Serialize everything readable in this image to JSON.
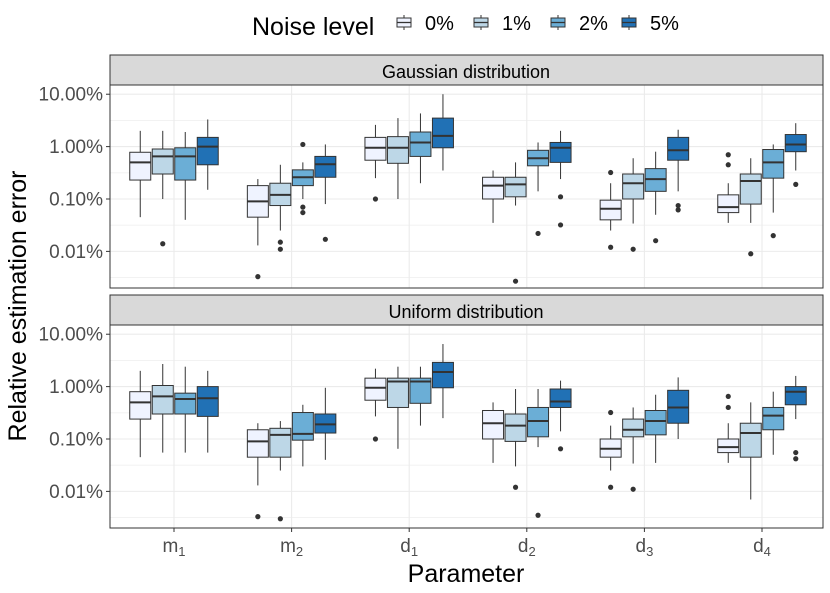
{
  "chart_data": {
    "type": "boxplot",
    "xlabel": "Parameter",
    "ylabel": "Relative estimation error",
    "legend": {
      "title": "Noise level",
      "position": "top",
      "entries": [
        {
          "label": "0%",
          "color": "#eff3ff"
        },
        {
          "label": "1%",
          "color": "#bdd7e7"
        },
        {
          "label": "2%",
          "color": "#6baed6"
        },
        {
          "label": "5%",
          "color": "#2171b5"
        }
      ]
    },
    "yscale": "log10",
    "ylim": [
      0.002,
      15
    ],
    "yticks": [
      {
        "value": 0.01,
        "label": "0.01%"
      },
      {
        "value": 0.1,
        "label": "0.10%"
      },
      {
        "value": 1,
        "label": "1.00%"
      },
      {
        "value": 10,
        "label": "10.00%"
      }
    ],
    "categories": [
      {
        "main": "m",
        "sub": "1"
      },
      {
        "main": "m",
        "sub": "2"
      },
      {
        "main": "d",
        "sub": "1"
      },
      {
        "main": "d",
        "sub": "2"
      },
      {
        "main": "d",
        "sub": "3"
      },
      {
        "main": "d",
        "sub": "4"
      }
    ],
    "panels": [
      {
        "title": "Gaussian distribution",
        "groups": [
          [
            {
              "lw": 0.045,
              "q1": 0.23,
              "med": 0.5,
              "q3": 0.78,
              "hw": 2.0,
              "out": []
            },
            {
              "lw": 0.1,
              "q1": 0.3,
              "med": 0.65,
              "q3": 0.9,
              "hw": 2.0,
              "out": [
                0.014
              ]
            },
            {
              "lw": 0.04,
              "q1": 0.23,
              "med": 0.65,
              "q3": 0.95,
              "hw": 1.9,
              "out": []
            },
            {
              "lw": 0.15,
              "q1": 0.45,
              "med": 1.0,
              "q3": 1.5,
              "hw": 3.3,
              "out": []
            }
          ],
          [
            {
              "lw": 0.013,
              "q1": 0.045,
              "med": 0.09,
              "q3": 0.18,
              "hw": 0.24,
              "out": [
                0.0033
              ]
            },
            {
              "lw": 0.025,
              "q1": 0.075,
              "med": 0.12,
              "q3": 0.2,
              "hw": 0.45,
              "out": [
                0.015,
                0.011
              ]
            },
            {
              "lw": 0.1,
              "q1": 0.18,
              "med": 0.26,
              "q3": 0.36,
              "hw": 0.5,
              "out": [
                1.1,
                0.07,
                0.055
              ]
            },
            {
              "lw": 0.08,
              "q1": 0.26,
              "med": 0.46,
              "q3": 0.65,
              "hw": 1.1,
              "out": [
                0.017
              ]
            }
          ],
          [
            {
              "lw": 0.25,
              "q1": 0.55,
              "med": 0.95,
              "q3": 1.5,
              "hw": 2.6,
              "out": [
                0.1
              ]
            },
            {
              "lw": 0.1,
              "q1": 0.48,
              "med": 0.95,
              "q3": 1.55,
              "hw": 3.5,
              "out": []
            },
            {
              "lw": 0.2,
              "q1": 0.65,
              "med": 1.2,
              "q3": 1.9,
              "hw": 4.3,
              "out": []
            },
            {
              "lw": 0.35,
              "q1": 0.95,
              "med": 1.6,
              "q3": 3.5,
              "hw": 10,
              "out": []
            }
          ],
          [
            {
              "lw": 0.035,
              "q1": 0.1,
              "med": 0.18,
              "q3": 0.26,
              "hw": 0.35,
              "out": []
            },
            {
              "lw": 0.075,
              "q1": 0.11,
              "med": 0.19,
              "q3": 0.26,
              "hw": 0.5,
              "out": [
                0.0027
              ]
            },
            {
              "lw": 0.14,
              "q1": 0.43,
              "med": 0.6,
              "q3": 0.85,
              "hw": 1.2,
              "out": [
                0.022
              ]
            },
            {
              "lw": 0.24,
              "q1": 0.5,
              "med": 0.95,
              "q3": 1.2,
              "hw": 2.0,
              "out": [
                0.11,
                0.032
              ]
            }
          ],
          [
            {
              "lw": 0.025,
              "q1": 0.04,
              "med": 0.065,
              "q3": 0.095,
              "hw": 0.2,
              "out": [
                0.32,
                0.012
              ]
            },
            {
              "lw": 0.034,
              "q1": 0.1,
              "med": 0.2,
              "q3": 0.3,
              "hw": 0.6,
              "out": [
                0.011
              ]
            },
            {
              "lw": 0.05,
              "q1": 0.14,
              "med": 0.24,
              "q3": 0.38,
              "hw": 0.8,
              "out": [
                0.016
              ]
            },
            {
              "lw": 0.14,
              "q1": 0.55,
              "med": 0.85,
              "q3": 1.5,
              "hw": 2.1,
              "out": [
                0.075,
                0.062
              ]
            }
          ],
          [
            {
              "lw": 0.035,
              "q1": 0.055,
              "med": 0.07,
              "q3": 0.12,
              "hw": 0.2,
              "out": [
                0.7,
                0.45
              ]
            },
            {
              "lw": 0.035,
              "q1": 0.08,
              "med": 0.22,
              "q3": 0.3,
              "hw": 0.6,
              "out": [
                0.009
              ]
            },
            {
              "lw": 0.055,
              "q1": 0.25,
              "med": 0.5,
              "q3": 0.88,
              "hw": 1.1,
              "out": [
                0.02
              ]
            },
            {
              "lw": 0.35,
              "q1": 0.8,
              "med": 1.1,
              "q3": 1.7,
              "hw": 2.8,
              "out": [
                0.19
              ]
            }
          ]
        ]
      },
      {
        "title": "Uniform distribution",
        "groups": [
          [
            {
              "lw": 0.045,
              "q1": 0.24,
              "med": 0.5,
              "q3": 0.8,
              "hw": 2.0,
              "out": []
            },
            {
              "lw": 0.055,
              "q1": 0.3,
              "med": 0.65,
              "q3": 1.05,
              "hw": 2.7,
              "out": []
            },
            {
              "lw": 0.055,
              "q1": 0.3,
              "med": 0.58,
              "q3": 0.75,
              "hw": 2.4,
              "out": []
            },
            {
              "lw": 0.055,
              "q1": 0.27,
              "med": 0.6,
              "q3": 1.0,
              "hw": 2.0,
              "out": []
            }
          ],
          [
            {
              "lw": 0.013,
              "q1": 0.045,
              "med": 0.09,
              "q3": 0.15,
              "hw": 0.2,
              "out": [
                0.0033
              ]
            },
            {
              "lw": 0.025,
              "q1": 0.045,
              "med": 0.12,
              "q3": 0.16,
              "hw": 0.22,
              "out": [
                0.003
              ]
            },
            {
              "lw": 0.03,
              "q1": 0.095,
              "med": 0.125,
              "q3": 0.32,
              "hw": 0.45,
              "out": []
            },
            {
              "lw": 0.04,
              "q1": 0.13,
              "med": 0.19,
              "q3": 0.3,
              "hw": 0.95,
              "out": []
            }
          ],
          [
            {
              "lw": 0.27,
              "q1": 0.55,
              "med": 0.95,
              "q3": 1.45,
              "hw": 2.2,
              "out": [
                0.1
              ]
            },
            {
              "lw": 0.065,
              "q1": 0.4,
              "med": 1.25,
              "q3": 1.45,
              "hw": 2.4,
              "out": []
            },
            {
              "lw": 0.18,
              "q1": 0.48,
              "med": 1.25,
              "q3": 1.45,
              "hw": 2.4,
              "out": []
            },
            {
              "lw": 0.25,
              "q1": 0.95,
              "med": 1.9,
              "q3": 2.9,
              "hw": 6.5,
              "out": []
            }
          ],
          [
            {
              "lw": 0.035,
              "q1": 0.1,
              "med": 0.2,
              "q3": 0.35,
              "hw": 0.5,
              "out": []
            },
            {
              "lw": 0.03,
              "q1": 0.09,
              "med": 0.18,
              "q3": 0.3,
              "hw": 0.9,
              "out": [
                0.012
              ]
            },
            {
              "lw": 0.07,
              "q1": 0.11,
              "med": 0.22,
              "q3": 0.4,
              "hw": 0.9,
              "out": [
                0.0035
              ]
            },
            {
              "lw": 0.14,
              "q1": 0.4,
              "med": 0.52,
              "q3": 0.9,
              "hw": 1.3,
              "out": [
                0.065
              ]
            }
          ],
          [
            {
              "lw": 0.025,
              "q1": 0.045,
              "med": 0.065,
              "q3": 0.1,
              "hw": 0.18,
              "out": [
                0.32,
                0.012
              ]
            },
            {
              "lw": 0.034,
              "q1": 0.11,
              "med": 0.15,
              "q3": 0.24,
              "hw": 0.4,
              "out": [
                0.011
              ]
            },
            {
              "lw": 0.035,
              "q1": 0.12,
              "med": 0.22,
              "q3": 0.35,
              "hw": 0.7,
              "out": []
            },
            {
              "lw": 0.1,
              "q1": 0.2,
              "med": 0.4,
              "q3": 0.85,
              "hw": 1.5,
              "out": []
            }
          ],
          [
            {
              "lw": 0.035,
              "q1": 0.055,
              "med": 0.07,
              "q3": 0.1,
              "hw": 0.2,
              "out": [
                0.65,
                0.4
              ]
            },
            {
              "lw": 0.007,
              "q1": 0.045,
              "med": 0.13,
              "q3": 0.2,
              "hw": 0.5,
              "out": []
            },
            {
              "lw": 0.05,
              "q1": 0.15,
              "med": 0.28,
              "q3": 0.4,
              "hw": 0.8,
              "out": []
            },
            {
              "lw": 0.24,
              "q1": 0.45,
              "med": 0.8,
              "q3": 1.0,
              "hw": 1.6,
              "out": [
                0.055,
                0.042
              ]
            }
          ]
        ]
      }
    ]
  }
}
